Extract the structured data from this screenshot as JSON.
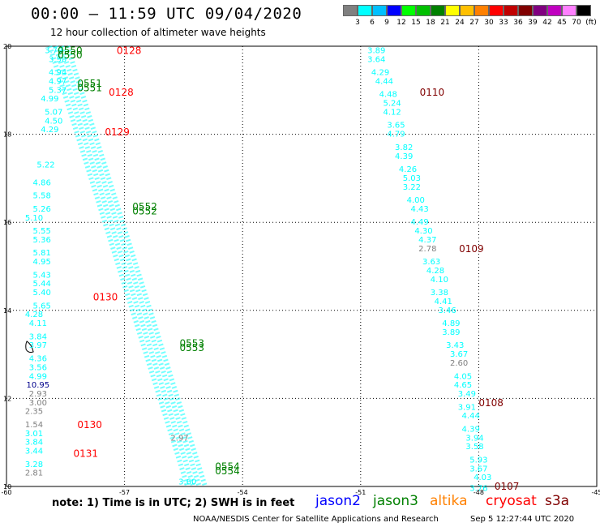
{
  "header": {
    "title": "00:00 – 11:59 UTC 09/04/2020",
    "subtitle": "12 hour collection of altimeter wave heights"
  },
  "colorbar": {
    "colors": [
      "#808080",
      "#00ffff",
      "#00c0ff",
      "#0000ff",
      "#00ff00",
      "#00c000",
      "#008000",
      "#ffff00",
      "#ffc000",
      "#ff8000",
      "#ff0000",
      "#c00000",
      "#800000",
      "#800080",
      "#c000c0",
      "#ff80ff",
      "#000000"
    ],
    "labels": [
      "3",
      "6",
      "9",
      "12",
      "15",
      "18",
      "21",
      "24",
      "27",
      "30",
      "33",
      "36",
      "39",
      "42",
      "45",
      "70",
      "(ft)"
    ]
  },
  "chart_data": {
    "type": "scatter",
    "title": "12 hour collection of altimeter wave heights",
    "xlabel": "",
    "ylabel": "",
    "xlim": [
      -60,
      -45
    ],
    "ylim": [
      10,
      20
    ],
    "x_ticks": [
      "-60",
      "-57",
      "-54",
      "-51",
      "-48",
      "-45"
    ],
    "y_ticks": [
      "10",
      "12",
      "14",
      "16",
      "18",
      "20"
    ],
    "grid": true,
    "series": [
      {
        "name": "jason3",
        "color": "#00ffff",
        "points": [
          {
            "x": -58.8,
            "y": 19.9,
            "v": "3.79"
          },
          {
            "x": -58.7,
            "y": 19.7,
            "v": "3.50"
          },
          {
            "x": -58.7,
            "y": 19.4,
            "v": "4.94"
          },
          {
            "x": -58.7,
            "y": 19.2,
            "v": "4.97"
          },
          {
            "x": -58.7,
            "y": 19.0,
            "v": "5.37"
          },
          {
            "x": -58.9,
            "y": 18.8,
            "v": "4.99"
          },
          {
            "x": -58.8,
            "y": 18.5,
            "v": "5.07"
          },
          {
            "x": -58.8,
            "y": 18.3,
            "v": "4.50"
          },
          {
            "x": -58.9,
            "y": 18.1,
            "v": "4.29"
          },
          {
            "x": -59.0,
            "y": 17.3,
            "v": "5.22"
          },
          {
            "x": -59.1,
            "y": 16.9,
            "v": "4.86"
          },
          {
            "x": -59.1,
            "y": 16.6,
            "v": "5.58"
          },
          {
            "x": -59.1,
            "y": 16.3,
            "v": "5.26"
          },
          {
            "x": -59.3,
            "y": 16.1,
            "v": "5.10"
          },
          {
            "x": -59.1,
            "y": 15.8,
            "v": "5.55"
          },
          {
            "x": -59.1,
            "y": 15.6,
            "v": "5.36"
          },
          {
            "x": -59.1,
            "y": 15.3,
            "v": "5.81"
          },
          {
            "x": -59.1,
            "y": 15.1,
            "v": "4.95"
          },
          {
            "x": -59.1,
            "y": 14.8,
            "v": "5.43"
          },
          {
            "x": -59.1,
            "y": 14.6,
            "v": "5.44"
          },
          {
            "x": -59.1,
            "y": 14.4,
            "v": "5.40"
          },
          {
            "x": -59.1,
            "y": 14.1,
            "v": "5.65"
          },
          {
            "x": -59.3,
            "y": 13.9,
            "v": "4.28"
          },
          {
            "x": -59.2,
            "y": 13.7,
            "v": "4.11"
          },
          {
            "x": -59.2,
            "y": 13.4,
            "v": "3.84"
          },
          {
            "x": -59.2,
            "y": 13.2,
            "v": "3.97"
          },
          {
            "x": -59.2,
            "y": 12.9,
            "v": "4.36"
          },
          {
            "x": -59.2,
            "y": 12.7,
            "v": "3.56"
          },
          {
            "x": -59.2,
            "y": 12.5,
            "v": "4.99"
          },
          {
            "x": -59.3,
            "y": 11.2,
            "v": "3.01"
          },
          {
            "x": -59.3,
            "y": 11.0,
            "v": "3.84"
          },
          {
            "x": -59.3,
            "y": 10.8,
            "v": "3.44"
          },
          {
            "x": -59.3,
            "y": 10.5,
            "v": "3.28"
          },
          {
            "x": -55.4,
            "y": 10.1,
            "v": "3.60"
          },
          {
            "x": -50.6,
            "y": 19.9,
            "v": "3.89"
          },
          {
            "x": -50.6,
            "y": 19.7,
            "v": "3.64"
          },
          {
            "x": -50.5,
            "y": 19.4,
            "v": "4.29"
          },
          {
            "x": -50.4,
            "y": 19.2,
            "v": "4.44"
          },
          {
            "x": -50.3,
            "y": 18.9,
            "v": "4.48"
          },
          {
            "x": -50.2,
            "y": 18.7,
            "v": "5.24"
          },
          {
            "x": -50.2,
            "y": 18.5,
            "v": "4.12"
          },
          {
            "x": -50.1,
            "y": 18.2,
            "v": "3.65"
          },
          {
            "x": -50.1,
            "y": 18.0,
            "v": "4.79"
          },
          {
            "x": -49.9,
            "y": 17.7,
            "v": "3.82"
          },
          {
            "x": -49.9,
            "y": 17.5,
            "v": "4.39"
          },
          {
            "x": -49.8,
            "y": 17.2,
            "v": "4.26"
          },
          {
            "x": -49.7,
            "y": 17.0,
            "v": "5.03"
          },
          {
            "x": -49.7,
            "y": 16.8,
            "v": "3.22"
          },
          {
            "x": -49.6,
            "y": 16.5,
            "v": "4.00"
          },
          {
            "x": -49.5,
            "y": 16.3,
            "v": "4.43"
          },
          {
            "x": -49.5,
            "y": 16.0,
            "v": "4.49"
          },
          {
            "x": -49.4,
            "y": 15.8,
            "v": "4.30"
          },
          {
            "x": -49.3,
            "y": 15.6,
            "v": "4.37"
          },
          {
            "x": -49.2,
            "y": 15.1,
            "v": "3.63"
          },
          {
            "x": -49.1,
            "y": 14.9,
            "v": "4.28"
          },
          {
            "x": -49.0,
            "y": 14.7,
            "v": "4.10"
          },
          {
            "x": -49.0,
            "y": 14.4,
            "v": "3.38"
          },
          {
            "x": -48.9,
            "y": 14.2,
            "v": "4.41"
          },
          {
            "x": -48.8,
            "y": 14.0,
            "v": "3.46"
          },
          {
            "x": -48.7,
            "y": 13.7,
            "v": "4.89"
          },
          {
            "x": -48.7,
            "y": 13.5,
            "v": "3.89"
          },
          {
            "x": -48.6,
            "y": 13.2,
            "v": "3.43"
          },
          {
            "x": -48.5,
            "y": 13.0,
            "v": "3.67"
          },
          {
            "x": -48.4,
            "y": 12.5,
            "v": "4.05"
          },
          {
            "x": -48.4,
            "y": 12.3,
            "v": "4.65"
          },
          {
            "x": -48.3,
            "y": 12.1,
            "v": "3.49"
          },
          {
            "x": -48.3,
            "y": 11.8,
            "v": "3.91"
          },
          {
            "x": -48.2,
            "y": 11.6,
            "v": "4.44"
          },
          {
            "x": -48.2,
            "y": 11.3,
            "v": "4.39"
          },
          {
            "x": -48.1,
            "y": 11.1,
            "v": "3.94"
          },
          {
            "x": -48.1,
            "y": 10.9,
            "v": "3.58"
          },
          {
            "x": -48.0,
            "y": 10.6,
            "v": "5.93"
          },
          {
            "x": -48.0,
            "y": 10.4,
            "v": "3.67"
          },
          {
            "x": -47.9,
            "y": 10.2,
            "v": "4.03"
          },
          {
            "x": -48.0,
            "y": 9.95,
            "v": "3.76"
          }
        ]
      },
      {
        "name": "jason2",
        "color": "#00008b",
        "points": [
          {
            "x": -59.2,
            "y": 12.3,
            "v": "10.95"
          }
        ]
      },
      {
        "name": "gray",
        "color": "#808080",
        "points": [
          {
            "x": -59.2,
            "y": 12.1,
            "v": "2.93"
          },
          {
            "x": -59.2,
            "y": 11.9,
            "v": "3.00"
          },
          {
            "x": -59.3,
            "y": 11.7,
            "v": "2.35"
          },
          {
            "x": -59.3,
            "y": 11.4,
            "v": "1.54"
          },
          {
            "x": -59.3,
            "y": 10.3,
            "v": "2.81"
          },
          {
            "x": -55.6,
            "y": 11.1,
            "v": "2.97"
          },
          {
            "x": -49.3,
            "y": 15.4,
            "v": "2.78"
          },
          {
            "x": -48.5,
            "y": 12.8,
            "v": "2.60"
          }
        ]
      }
    ],
    "pass_labels": [
      {
        "text": "0550",
        "x": -58.7,
        "y": 19.9,
        "color": "#008000"
      },
      {
        "text": "0550",
        "x": -58.7,
        "y": 19.8,
        "color": "#008000"
      },
      {
        "text": "0128",
        "x": -57.2,
        "y": 19.9,
        "color": "#ff0000"
      },
      {
        "text": "0551",
        "x": -58.2,
        "y": 19.15,
        "color": "#008000"
      },
      {
        "text": "0551",
        "x": -58.2,
        "y": 19.05,
        "color": "#008000"
      },
      {
        "text": "0128",
        "x": -57.4,
        "y": 18.95,
        "color": "#ff0000"
      },
      {
        "text": "0129",
        "x": -57.5,
        "y": 18.05,
        "color": "#ff0000"
      },
      {
        "text": "0552",
        "x": -56.8,
        "y": 16.35,
        "color": "#008000"
      },
      {
        "text": "0552",
        "x": -56.8,
        "y": 16.25,
        "color": "#008000"
      },
      {
        "text": "0130",
        "x": -57.8,
        "y": 14.3,
        "color": "#ff0000"
      },
      {
        "text": "0553",
        "x": -55.6,
        "y": 13.25,
        "color": "#008000"
      },
      {
        "text": "0553",
        "x": -55.6,
        "y": 13.15,
        "color": "#008000"
      },
      {
        "text": "0130",
        "x": -58.2,
        "y": 11.4,
        "color": "#ff0000"
      },
      {
        "text": "0131",
        "x": -58.3,
        "y": 10.75,
        "color": "#ff0000"
      },
      {
        "text": "0554",
        "x": -54.7,
        "y": 10.45,
        "color": "#008000"
      },
      {
        "text": "0554",
        "x": -54.7,
        "y": 10.35,
        "color": "#008000"
      },
      {
        "text": "0110",
        "x": -49.5,
        "y": 18.95,
        "color": "#800000"
      },
      {
        "text": "0109",
        "x": -48.5,
        "y": 15.4,
        "color": "#800000"
      },
      {
        "text": "0108",
        "x": -48.0,
        "y": 11.9,
        "color": "#800000"
      },
      {
        "text": "0107",
        "x": -47.6,
        "y": 10.0,
        "color": "#800000"
      }
    ]
  },
  "footer": {
    "note": "note:  1) Time is in UTC;  2) SWH is in feet",
    "satellites": [
      {
        "name": "jason2",
        "color": "#0000ff"
      },
      {
        "name": "jason3",
        "color": "#008000"
      },
      {
        "name": "altika",
        "color": "#ff8000"
      },
      {
        "name": "cryosat",
        "color": "#ff0000"
      },
      {
        "name": "s3a",
        "color": "#800000"
      }
    ],
    "credit": "NOAA/NESDIS Center for Satellite Applications and Research",
    "timestamp": "Sep  5 12:27:44 UTC 2020"
  }
}
